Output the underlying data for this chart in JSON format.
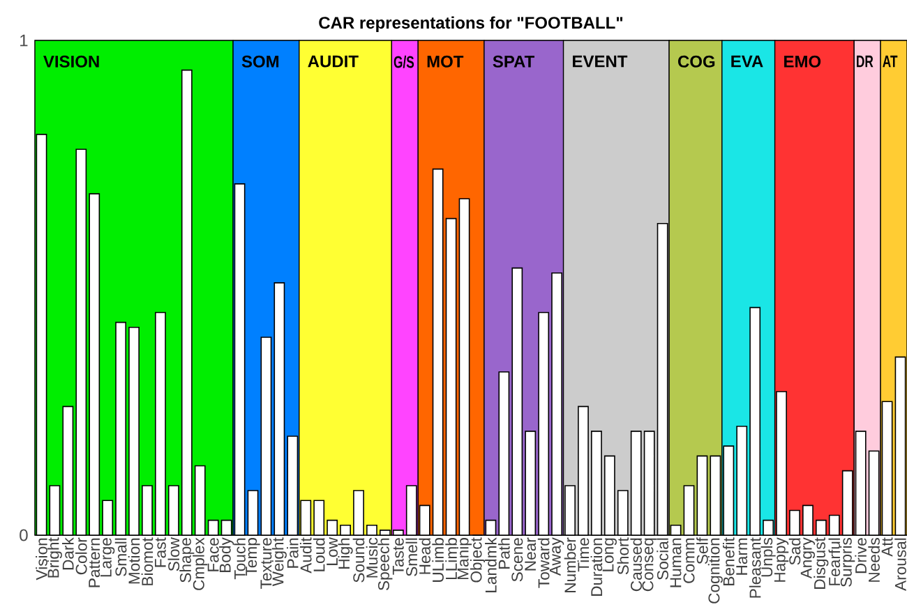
{
  "chart_data": {
    "type": "bar",
    "title": "CAR representations for \"FOOTBALL\"",
    "categories": [
      "Vision",
      "Bright",
      "Dark",
      "Color",
      "Pattern",
      "Large",
      "Small",
      "Motion",
      "Biomot",
      "Fast",
      "Slow",
      "Shape",
      "Cmplex",
      "Face",
      "Body",
      "Touch",
      "Temp",
      "Texture",
      "Weight",
      "Pain",
      "Audit",
      "Loud",
      "Low",
      "High",
      "Sound",
      "Music",
      "Speech",
      "Taste",
      "Smell",
      "Head",
      "ULimb",
      "LLimb",
      "Manip",
      "Object",
      "Landmk",
      "Path",
      "Scene",
      "Near",
      "Toward",
      "Away",
      "Number",
      "Time",
      "Duration",
      "Long",
      "Short",
      "Caused",
      "Conseq",
      "Social",
      "Human",
      "Comm",
      "Self",
      "Cognition",
      "Benefit",
      "Harm",
      "Pleasant",
      "Unpls",
      "Happy",
      "Sad",
      "Angry",
      "Disgust",
      "Fearful",
      "Surpris",
      "Drive",
      "Needs",
      "Att",
      "Arousal"
    ],
    "values": [
      0.81,
      0.1,
      0.26,
      0.78,
      0.69,
      0.07,
      0.43,
      0.42,
      0.1,
      0.45,
      0.1,
      0.94,
      0.14,
      0.03,
      0.03,
      0.71,
      0.09,
      0.4,
      0.51,
      0.2,
      0.07,
      0.07,
      0.03,
      0.02,
      0.09,
      0.02,
      0.01,
      0.01,
      0.1,
      0.06,
      0.74,
      0.64,
      0.68,
      0,
      0.03,
      0.33,
      0.54,
      0.21,
      0.45,
      0.53,
      0.1,
      0.26,
      0.21,
      0.16,
      0.09,
      0.21,
      0.21,
      0.63,
      0.02,
      0.1,
      0.16,
      0.16,
      0.18,
      0.22,
      0.46,
      0.03,
      0.29,
      0.05,
      0.06,
      0.03,
      0.04,
      0.13,
      0.21,
      0.17,
      0.27,
      0.36
    ],
    "color": "#ffffff",
    "ylim": [
      0,
      1
    ],
    "yticks": [
      0,
      1
    ],
    "bands": [
      {
        "axis": "x",
        "from": "Vision",
        "to": "Body",
        "label": "VISION",
        "color": "#00ee00"
      },
      {
        "axis": "x",
        "from": "Touch",
        "to": "Pain",
        "label": "SOM",
        "color": "#0080ff"
      },
      {
        "axis": "x",
        "from": "Audit",
        "to": "Speech",
        "label": "AUDIT",
        "color": "#ffff33"
      },
      {
        "axis": "x",
        "from": "Taste",
        "to": "Smell",
        "label": "G/S",
        "color": "#ff44ff"
      },
      {
        "axis": "x",
        "from": "Head",
        "to": "Object",
        "label": "MOT",
        "color": "#ff6600"
      },
      {
        "axis": "x",
        "from": "Landmk",
        "to": "Away",
        "label": "SPAT",
        "color": "#9966cc"
      },
      {
        "axis": "x",
        "from": "Number",
        "to": "Social",
        "label": "EVENT",
        "color": "#cccccc"
      },
      {
        "axis": "x",
        "from": "Human",
        "to": "Cognition",
        "label": "COG",
        "color": "#b5c94f"
      },
      {
        "axis": "x",
        "from": "Benefit",
        "to": "Unpls",
        "label": "EVA",
        "color": "#1ae6e6"
      },
      {
        "axis": "x",
        "from": "Happy",
        "to": "Surpris",
        "label": "EMO",
        "color": "#ff3333"
      },
      {
        "axis": "x",
        "from": "Drive",
        "to": "Needs",
        "label": "DR",
        "color": "#ffccdd"
      },
      {
        "axis": "x",
        "from": "Att",
        "to": "Arousal",
        "label": "AT",
        "color": "#ffcc33"
      }
    ]
  }
}
